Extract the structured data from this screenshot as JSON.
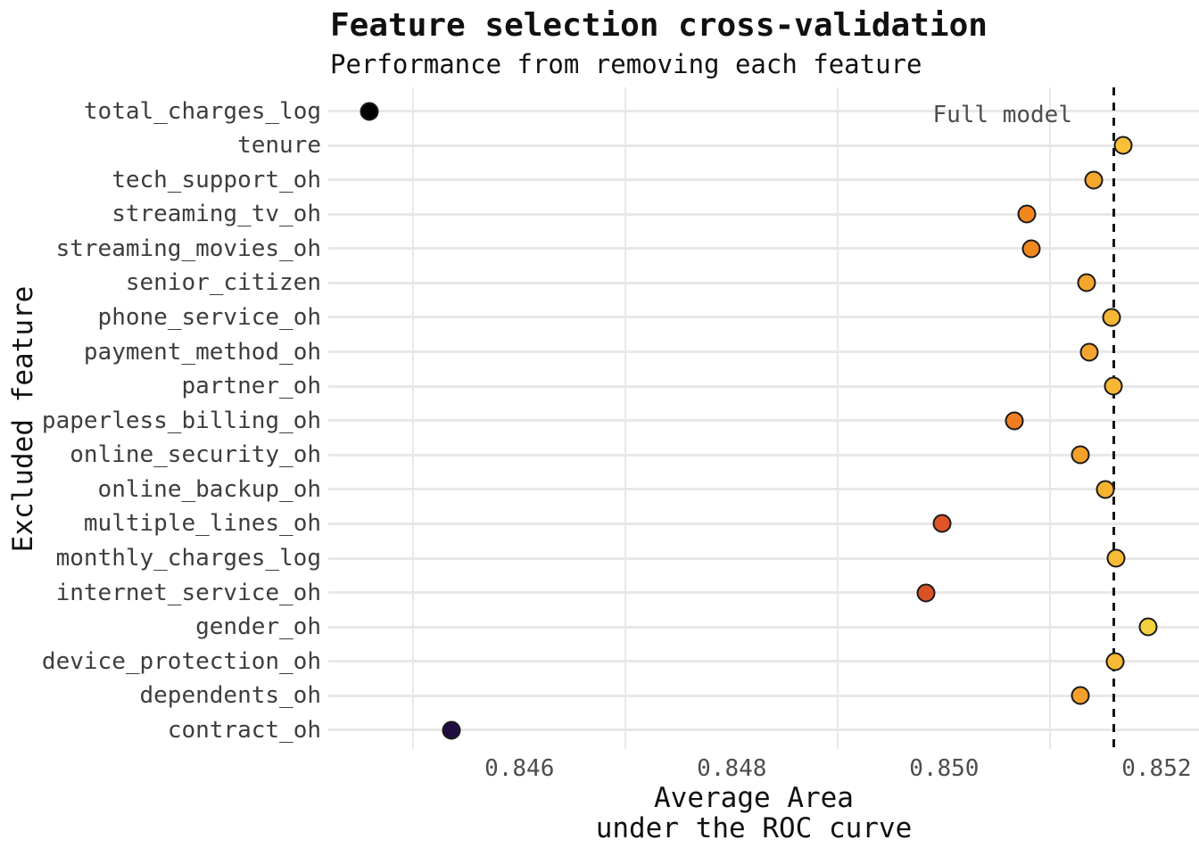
{
  "title": "Feature selection cross-validation",
  "subtitle": "Performance from removing each feature",
  "x_axis": {
    "label_line1": "Average Area",
    "label_line2": "under the ROC curve",
    "tick_labels": [
      "0.846",
      "0.848",
      "0.850",
      "0.852"
    ]
  },
  "y_axis": {
    "label": "Excluded feature"
  },
  "annotation": {
    "full_model_label": "Full model",
    "full_model_value": 0.8516
  },
  "chart_data": {
    "type": "scatter",
    "subtype": "horizontal-dot-plot",
    "title": "Feature selection cross-validation",
    "subtitle": "Performance from removing each feature",
    "xlabel": "Average Area under the ROC curve",
    "ylabel": "Excluded feature",
    "xlim": [
      0.8442,
      0.8524
    ],
    "grid": "on",
    "minor_gridline_values": [
      0.845,
      0.847,
      0.849,
      0.851
    ],
    "reference_line": {
      "value": 0.8516,
      "style": "dashed",
      "label": "Full model"
    },
    "categories": [
      "total_charges_log",
      "tenure",
      "tech_support_oh",
      "streaming_tv_oh",
      "streaming_movies_oh",
      "senior_citizen",
      "phone_service_oh",
      "payment_method_oh",
      "partner_oh",
      "paperless_billing_oh",
      "online_security_oh",
      "online_backup_oh",
      "multiple_lines_oh",
      "monthly_charges_log",
      "internet_service_oh",
      "gender_oh",
      "device_protection_oh",
      "dependents_oh",
      "contract_oh"
    ],
    "values": [
      0.84459,
      0.85169,
      0.85141,
      0.85078,
      0.85082,
      0.85134,
      0.85158,
      0.85137,
      0.85159,
      0.85066,
      0.85128,
      0.85152,
      0.84998,
      0.85162,
      0.84983,
      0.85192,
      0.85161,
      0.85128,
      0.84536
    ],
    "point_colors": [
      "#030104",
      "#f8bf37",
      "#f5a72e",
      "#f1861f",
      "#f1871e",
      "#f5a42c",
      "#f7b634",
      "#f5a52d",
      "#f7b734",
      "#ef7f22",
      "#f4a02a",
      "#f7b232",
      "#df5527",
      "#f8bb35",
      "#d95226",
      "#f3d13f",
      "#f8ba35",
      "#f4a02a",
      "#200d42"
    ]
  },
  "colors": {
    "background": "#ffffff",
    "gridline": "#e8e8e8",
    "dot_stroke": "#1a1a1a",
    "dashed_line": "#141414",
    "annotation_text": "#4d4d4d",
    "tick_text": "#4d4d4d",
    "row_label_text": "#3d3d3d",
    "title_text": "#111111"
  }
}
